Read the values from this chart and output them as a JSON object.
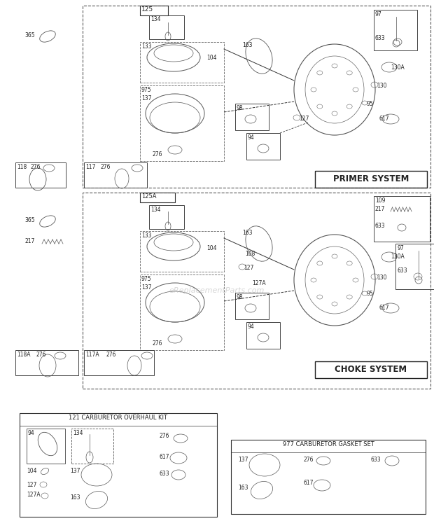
{
  "bg_color": "#ffffff",
  "watermark": "eReplacementParts.com",
  "primer_system_label": "PRIMER SYSTEM",
  "choke_system_label": "CHOKE SYSTEM",
  "kit1_label": "121 CARBURETOR OVERHAUL KIT",
  "kit2_label": "977 CARBURETOR GASKET SET"
}
